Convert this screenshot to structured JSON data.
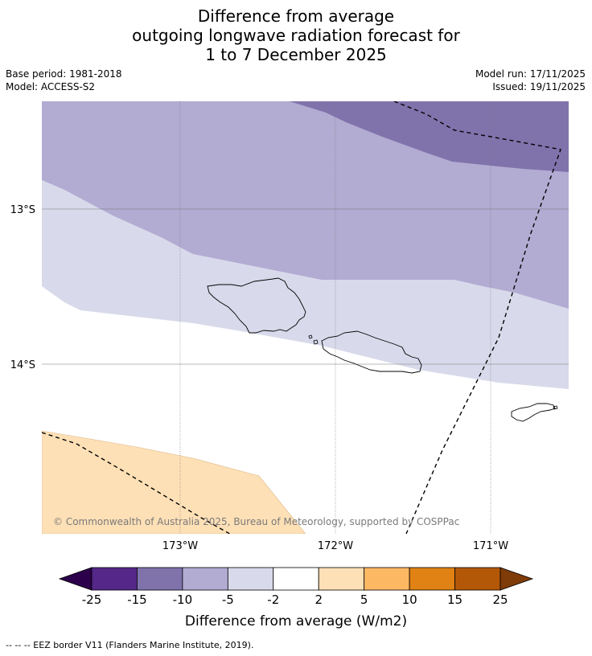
{
  "title": {
    "line1": "Difference from average",
    "line2": "outgoing longwave radiation forecast for",
    "line3": "1 to 7 December 2025"
  },
  "meta": {
    "base_period": "Base period: 1981-2018",
    "model": "Model: ACCESS-S2",
    "model_run": "Model run: 17/11/2025",
    "issued": "Issued: 19/11/2025"
  },
  "map": {
    "lat_labels": [
      "13°S",
      "14°S"
    ],
    "lon_labels": [
      "173°W",
      "172°W",
      "171°W"
    ],
    "copyright": "© Commonwealth of Australia 2025, Bureau of Meteorology, supported by COSPPac",
    "islands": [
      "Savai'i",
      "Upolu",
      "Tutuila"
    ]
  },
  "legend": {
    "ticks": [
      "-25",
      "-15",
      "-10",
      "-5",
      "-2",
      "2",
      "5",
      "10",
      "15",
      "25"
    ],
    "colors": [
      "#2d004b",
      "#542788",
      "#8073ac",
      "#b2abd2",
      "#d8daeb",
      "#ffffff",
      "#fee0b6",
      "#fdb863",
      "#e08214",
      "#b35806",
      "#7f3b08"
    ],
    "label": "Difference from average (W/m2)"
  },
  "footer": {
    "eez_note": "--  --  -- EEZ border V11 (Flanders Marine Institute, 2019)."
  }
}
